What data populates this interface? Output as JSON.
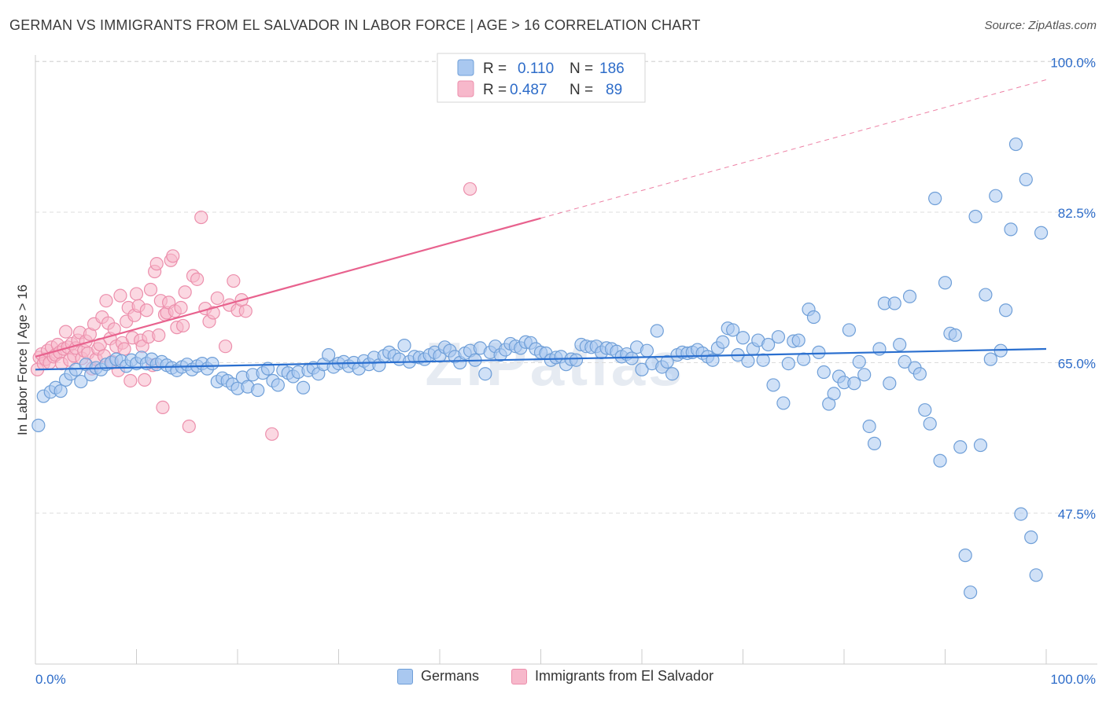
{
  "title": "GERMAN VS IMMIGRANTS FROM EL SALVADOR IN LABOR FORCE | AGE > 16 CORRELATION CHART",
  "source": "Source: ZipAtlas.com",
  "watermark": "ZIPatlas",
  "legend_top": {
    "rows": [
      {
        "r_label": "R =",
        "r_value": "0.110",
        "n_label": "N =",
        "n_value": "186"
      },
      {
        "r_label": "R =",
        "r_value": "0.487",
        "n_label": "N =",
        "n_value": "89"
      }
    ]
  },
  "legend_bottom": [
    {
      "label": "Germans"
    },
    {
      "label": "Immigrants from El Salvador"
    }
  ],
  "colors": {
    "blue_fill": "#a9c8f0",
    "blue_stroke": "#6f9fd8",
    "blue_line": "#2a6fcf",
    "blue_text": "#2d6cc9",
    "pink_fill": "#f7b8cb",
    "pink_stroke": "#ec8fac",
    "pink_line": "#e8628e",
    "grid": "#dcdcdc",
    "axis": "#cccccc"
  },
  "chart_data": {
    "type": "scatter",
    "xlabel": "",
    "ylabel": "In Labor Force | Age > 16",
    "xlim": [
      0,
      100
    ],
    "ylim": [
      35,
      106
    ],
    "x_tick_labels": [
      "0.0%",
      "100.0%"
    ],
    "y_ticks": [
      47.5,
      65.0,
      82.5,
      100.0
    ],
    "y_tick_labels": [
      "47.5%",
      "65.0%",
      "82.5%",
      "100.0%"
    ],
    "grid": "horizontal-dashed",
    "series": [
      {
        "name": "Germans",
        "R": 0.11,
        "N": 186,
        "trend": {
          "x0": 0,
          "y0": 64.2,
          "x1": 100,
          "y1": 66.6
        },
        "points": [
          [
            0.3,
            57.7
          ],
          [
            0.8,
            61.1
          ],
          [
            1.5,
            61.6
          ],
          [
            2.0,
            62.1
          ],
          [
            2.5,
            61.7
          ],
          [
            3.0,
            63.0
          ],
          [
            3.5,
            63.7
          ],
          [
            4.0,
            64.2
          ],
          [
            4.5,
            62.8
          ],
          [
            5.0,
            64.8
          ],
          [
            5.5,
            63.6
          ],
          [
            6.0,
            64.4
          ],
          [
            6.5,
            64.2
          ],
          [
            7.0,
            64.8
          ],
          [
            7.5,
            65.0
          ],
          [
            8.0,
            65.4
          ],
          [
            8.5,
            65.2
          ],
          [
            9.0,
            64.6
          ],
          [
            9.5,
            65.3
          ],
          [
            10.0,
            64.9
          ],
          [
            10.5,
            65.6
          ],
          [
            11.0,
            64.9
          ],
          [
            11.5,
            65.4
          ],
          [
            12.0,
            64.8
          ],
          [
            12.5,
            65.1
          ],
          [
            13.0,
            64.7
          ],
          [
            13.5,
            64.4
          ],
          [
            14.0,
            64.1
          ],
          [
            14.5,
            64.5
          ],
          [
            15.0,
            64.8
          ],
          [
            15.5,
            64.2
          ],
          [
            16.0,
            64.6
          ],
          [
            16.5,
            64.9
          ],
          [
            17.0,
            64.3
          ],
          [
            17.5,
            64.9
          ],
          [
            18.0,
            62.8
          ],
          [
            18.5,
            63.2
          ],
          [
            19.0,
            62.9
          ],
          [
            19.5,
            62.5
          ],
          [
            20.0,
            62.0
          ],
          [
            20.5,
            63.3
          ],
          [
            21.0,
            62.2
          ],
          [
            21.5,
            63.6
          ],
          [
            22.0,
            61.8
          ],
          [
            22.5,
            63.8
          ],
          [
            23.0,
            64.3
          ],
          [
            23.5,
            62.9
          ],
          [
            24.0,
            62.4
          ],
          [
            24.5,
            64.1
          ],
          [
            25.0,
            63.8
          ],
          [
            25.5,
            63.4
          ],
          [
            26.0,
            63.9
          ],
          [
            26.5,
            62.1
          ],
          [
            27.0,
            64.1
          ],
          [
            27.5,
            64.4
          ],
          [
            28.0,
            63.7
          ],
          [
            28.5,
            64.8
          ],
          [
            29.0,
            65.9
          ],
          [
            29.5,
            64.5
          ],
          [
            30.0,
            64.9
          ],
          [
            30.5,
            65.1
          ],
          [
            31.0,
            64.6
          ],
          [
            31.5,
            65.0
          ],
          [
            32.0,
            64.3
          ],
          [
            32.5,
            65.2
          ],
          [
            33.0,
            64.8
          ],
          [
            33.5,
            65.6
          ],
          [
            34.0,
            64.7
          ],
          [
            34.5,
            65.8
          ],
          [
            35.0,
            66.2
          ],
          [
            35.5,
            65.8
          ],
          [
            36.0,
            65.4
          ],
          [
            36.5,
            67.0
          ],
          [
            37.0,
            65.1
          ],
          [
            37.5,
            65.7
          ],
          [
            38.0,
            65.6
          ],
          [
            38.5,
            65.4
          ],
          [
            39.0,
            65.9
          ],
          [
            39.5,
            66.2
          ],
          [
            40.0,
            65.8
          ],
          [
            40.5,
            66.8
          ],
          [
            41.0,
            66.4
          ],
          [
            41.5,
            65.7
          ],
          [
            42.0,
            65.0
          ],
          [
            42.5,
            66.1
          ],
          [
            43.0,
            66.4
          ],
          [
            43.5,
            65.3
          ],
          [
            44.0,
            66.7
          ],
          [
            44.5,
            63.7
          ],
          [
            45.0,
            66.2
          ],
          [
            45.5,
            66.9
          ],
          [
            46.0,
            65.9
          ],
          [
            46.5,
            66.5
          ],
          [
            47.0,
            67.2
          ],
          [
            47.5,
            66.9
          ],
          [
            48.0,
            66.7
          ],
          [
            48.5,
            67.4
          ],
          [
            49.0,
            67.3
          ],
          [
            49.5,
            66.6
          ],
          [
            50.0,
            66.2
          ],
          [
            50.5,
            66.1
          ],
          [
            51.0,
            65.3
          ],
          [
            51.5,
            65.6
          ],
          [
            52.0,
            65.7
          ],
          [
            52.5,
            64.8
          ],
          [
            53.0,
            65.4
          ],
          [
            53.5,
            65.3
          ],
          [
            54.0,
            67.1
          ],
          [
            54.5,
            66.9
          ],
          [
            55.0,
            66.8
          ],
          [
            55.5,
            66.9
          ],
          [
            56.0,
            66.2
          ],
          [
            56.5,
            66.7
          ],
          [
            57.0,
            66.6
          ],
          [
            57.5,
            66.3
          ],
          [
            58.0,
            65.7
          ],
          [
            58.5,
            66.0
          ],
          [
            59.0,
            65.5
          ],
          [
            59.5,
            66.8
          ],
          [
            60.0,
            64.2
          ],
          [
            60.5,
            66.4
          ],
          [
            61.0,
            64.9
          ],
          [
            61.5,
            68.7
          ],
          [
            62.0,
            64.5
          ],
          [
            62.5,
            65.1
          ],
          [
            63.0,
            63.7
          ],
          [
            63.5,
            65.9
          ],
          [
            64.0,
            66.2
          ],
          [
            64.5,
            66.1
          ],
          [
            65.0,
            66.2
          ],
          [
            65.5,
            66.5
          ],
          [
            66.0,
            66.1
          ],
          [
            66.5,
            65.7
          ],
          [
            67.0,
            65.3
          ],
          [
            67.5,
            66.7
          ],
          [
            68.0,
            67.4
          ],
          [
            68.5,
            69.0
          ],
          [
            69.0,
            68.8
          ],
          [
            69.5,
            65.9
          ],
          [
            70.0,
            67.9
          ],
          [
            70.5,
            65.2
          ],
          [
            71.0,
            66.6
          ],
          [
            71.5,
            67.6
          ],
          [
            72.0,
            65.3
          ],
          [
            72.5,
            67.1
          ],
          [
            73.0,
            62.4
          ],
          [
            73.5,
            68.0
          ],
          [
            74.0,
            60.3
          ],
          [
            74.5,
            64.9
          ],
          [
            75.0,
            67.5
          ],
          [
            75.5,
            67.6
          ],
          [
            76.0,
            65.4
          ],
          [
            76.5,
            71.2
          ],
          [
            77.0,
            70.3
          ],
          [
            77.5,
            66.2
          ],
          [
            78.0,
            63.9
          ],
          [
            78.5,
            60.2
          ],
          [
            79.0,
            61.4
          ],
          [
            79.5,
            63.4
          ],
          [
            80.0,
            62.7
          ],
          [
            80.5,
            68.8
          ],
          [
            81.0,
            62.6
          ],
          [
            81.5,
            65.1
          ],
          [
            82.0,
            63.6
          ],
          [
            82.5,
            57.6
          ],
          [
            83.0,
            55.6
          ],
          [
            83.5,
            66.6
          ],
          [
            84.0,
            71.9
          ],
          [
            84.5,
            62.6
          ],
          [
            85.0,
            71.9
          ],
          [
            85.5,
            67.1
          ],
          [
            86.0,
            65.1
          ],
          [
            86.5,
            72.7
          ],
          [
            87.0,
            64.4
          ],
          [
            87.5,
            63.7
          ],
          [
            88.0,
            59.5
          ],
          [
            88.5,
            57.9
          ],
          [
            89.0,
            84.1
          ],
          [
            89.5,
            53.6
          ],
          [
            90.0,
            74.3
          ],
          [
            90.5,
            68.4
          ],
          [
            91.0,
            68.2
          ],
          [
            91.5,
            55.2
          ],
          [
            92.0,
            42.6
          ],
          [
            92.5,
            38.3
          ],
          [
            93.0,
            82.0
          ],
          [
            93.5,
            55.4
          ],
          [
            94.0,
            72.9
          ],
          [
            94.5,
            65.4
          ],
          [
            95.0,
            84.4
          ],
          [
            95.5,
            66.4
          ],
          [
            96.0,
            71.1
          ],
          [
            96.5,
            80.5
          ],
          [
            97.0,
            90.4
          ],
          [
            97.5,
            47.4
          ],
          [
            98.0,
            86.3
          ],
          [
            98.5,
            44.7
          ],
          [
            99.0,
            40.3
          ],
          [
            99.5,
            80.1
          ]
        ]
      },
      {
        "name": "Immigrants from El Salvador",
        "R": 0.487,
        "N": 89,
        "trend": {
          "x0": 0,
          "y0": 65.7,
          "x1": 50,
          "y1": 81.8,
          "dashed_to": {
            "x": 100,
            "y": 97.9
          }
        },
        "points": [
          [
            0.2,
            64.2
          ],
          [
            0.4,
            65.6
          ],
          [
            0.6,
            66.0
          ],
          [
            0.8,
            64.9
          ],
          [
            1.0,
            65.4
          ],
          [
            1.2,
            66.4
          ],
          [
            1.4,
            65.0
          ],
          [
            1.6,
            66.8
          ],
          [
            1.8,
            65.7
          ],
          [
            2.0,
            65.9
          ],
          [
            2.2,
            67.1
          ],
          [
            2.4,
            66.2
          ],
          [
            2.6,
            64.9
          ],
          [
            2.8,
            66.6
          ],
          [
            3.0,
            68.6
          ],
          [
            3.2,
            66.8
          ],
          [
            3.4,
            65.3
          ],
          [
            3.6,
            67.2
          ],
          [
            3.8,
            65.8
          ],
          [
            4.0,
            66.7
          ],
          [
            4.2,
            67.6
          ],
          [
            4.4,
            68.5
          ],
          [
            4.6,
            65.5
          ],
          [
            4.8,
            66.4
          ],
          [
            5.0,
            67.5
          ],
          [
            5.2,
            66.1
          ],
          [
            5.4,
            68.3
          ],
          [
            5.6,
            64.3
          ],
          [
            5.8,
            69.5
          ],
          [
            6.0,
            65.4
          ],
          [
            6.2,
            66.6
          ],
          [
            6.4,
            67.1
          ],
          [
            6.6,
            70.3
          ],
          [
            6.8,
            65.8
          ],
          [
            7.0,
            72.2
          ],
          [
            7.2,
            69.6
          ],
          [
            7.4,
            67.8
          ],
          [
            7.6,
            65.1
          ],
          [
            7.8,
            68.9
          ],
          [
            8.0,
            66.9
          ],
          [
            8.2,
            64.1
          ],
          [
            8.4,
            72.8
          ],
          [
            8.6,
            67.3
          ],
          [
            8.8,
            66.6
          ],
          [
            9.0,
            69.8
          ],
          [
            9.2,
            71.4
          ],
          [
            9.4,
            62.9
          ],
          [
            9.6,
            67.9
          ],
          [
            9.8,
            70.5
          ],
          [
            10.0,
            73.0
          ],
          [
            10.2,
            71.6
          ],
          [
            10.4,
            67.6
          ],
          [
            10.6,
            66.9
          ],
          [
            10.8,
            63.0
          ],
          [
            11.0,
            71.1
          ],
          [
            11.2,
            68.0
          ],
          [
            11.4,
            73.5
          ],
          [
            11.6,
            64.7
          ],
          [
            11.8,
            75.6
          ],
          [
            12.0,
            76.5
          ],
          [
            12.2,
            68.2
          ],
          [
            12.4,
            72.2
          ],
          [
            12.6,
            59.8
          ],
          [
            12.8,
            70.6
          ],
          [
            13.0,
            70.8
          ],
          [
            13.2,
            72.0
          ],
          [
            13.4,
            76.9
          ],
          [
            13.6,
            77.4
          ],
          [
            13.8,
            71.0
          ],
          [
            14.0,
            69.1
          ],
          [
            14.4,
            71.4
          ],
          [
            14.6,
            69.3
          ],
          [
            14.8,
            73.2
          ],
          [
            15.2,
            57.6
          ],
          [
            15.6,
            75.1
          ],
          [
            16.0,
            74.7
          ],
          [
            16.4,
            81.9
          ],
          [
            16.8,
            71.3
          ],
          [
            17.2,
            69.8
          ],
          [
            17.6,
            70.8
          ],
          [
            18.0,
            72.5
          ],
          [
            18.8,
            66.9
          ],
          [
            19.2,
            71.7
          ],
          [
            19.6,
            74.5
          ],
          [
            20.0,
            71.1
          ],
          [
            20.4,
            72.3
          ],
          [
            20.8,
            71.0
          ],
          [
            23.4,
            56.7
          ],
          [
            43.0,
            85.2
          ]
        ]
      }
    ]
  }
}
